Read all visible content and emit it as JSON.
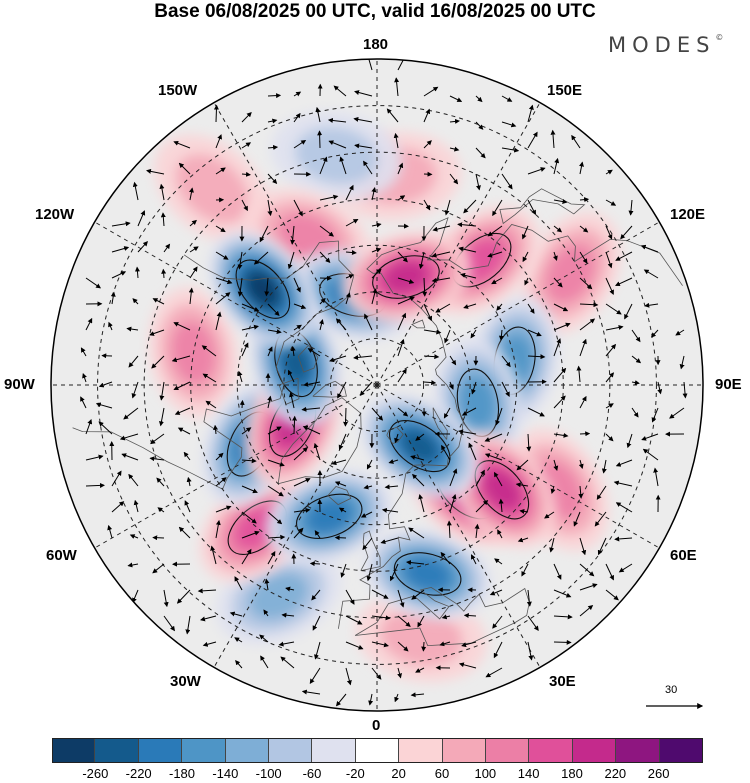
{
  "title": "Base 06/08/2025 00 UTC, valid 16/08/2025 00 UTC",
  "brand": {
    "name": "MODES",
    "mark": "©"
  },
  "longitude_labels": {
    "lon_180": "180",
    "lon_150e": "150E",
    "lon_120e": "120E",
    "lon_90e": "90E",
    "lon_60e": "60E",
    "lon_30e": "30E",
    "lon_0": "0",
    "lon_30w": "30W",
    "lon_60w": "60W",
    "lon_90w": "90W",
    "lon_120w": "120W",
    "lon_150w": "150W"
  },
  "reference_vector": {
    "label": "30",
    "icon": "arrow-right-icon"
  },
  "colorbar": {
    "colors": [
      "#0d3b66",
      "#145a8c",
      "#2a7ab8",
      "#4e95c6",
      "#7eaed6",
      "#b2c6e3",
      "#dfe1ef",
      "#ffffff",
      "#fbd4d6",
      "#f4a9b8",
      "#ec7fa6",
      "#e0509a",
      "#c42a8c",
      "#8e1680",
      "#4f0a6e"
    ],
    "ticks": [
      "-260",
      "-220",
      "-180",
      "-140",
      "-100",
      "-60",
      "-20",
      "20",
      "60",
      "100",
      "140",
      "180",
      "220",
      "260"
    ]
  },
  "anomalies": [
    {
      "lon": 35,
      "lat": 74,
      "value": -220
    },
    {
      "lon": -130,
      "lat": 58,
      "value": -260
    },
    {
      "lon": -105,
      "lat": 72,
      "value": -220
    },
    {
      "lon": -65,
      "lat": 60,
      "value": -200
    },
    {
      "lon": -165,
      "lat": 70,
      "value": -180
    },
    {
      "lon": -20,
      "lat": 60,
      "value": -180
    },
    {
      "lon": 15,
      "lat": 48,
      "value": -180
    },
    {
      "lon": 50,
      "lat": 55,
      "value": 200
    },
    {
      "lon": 140,
      "lat": 55,
      "value": 160
    },
    {
      "lon": 165,
      "lat": 66,
      "value": 180
    },
    {
      "lon": -65,
      "lat": 70,
      "value": 200
    },
    {
      "lon": 40,
      "lat": 60,
      "value": 180
    },
    {
      "lon": -155,
      "lat": 55,
      "value": 120
    },
    {
      "lon": -40,
      "lat": 50,
      "value": 140
    },
    {
      "lon": 100,
      "lat": 60,
      "value": -140
    },
    {
      "lon": 80,
      "lat": 68,
      "value": -140
    },
    {
      "lon": 120,
      "lat": 42,
      "value": 120
    },
    {
      "lon": 60,
      "lat": 45,
      "value": 100
    },
    {
      "lon": -100,
      "lat": 50,
      "value": 100
    },
    {
      "lon": -25,
      "lat": 40,
      "value": -100
    },
    {
      "lon": 10,
      "lat": 35,
      "value": 80
    },
    {
      "lon": -170,
      "lat": 40,
      "value": -80
    },
    {
      "lon": 175,
      "lat": 45,
      "value": 60
    },
    {
      "lon": -140,
      "lat": 35,
      "value": 80
    }
  ],
  "continent_outlines": [
    [
      [
        -168,
        66
      ],
      [
        -162,
        70
      ],
      [
        -152,
        71
      ],
      [
        -140,
        70
      ],
      [
        -128,
        70
      ],
      [
        -115,
        68
      ],
      [
        -100,
        68
      ],
      [
        -90,
        70
      ],
      [
        -82,
        69
      ],
      [
        -80,
        64
      ],
      [
        -78,
        58
      ],
      [
        -82,
        53
      ],
      [
        -78,
        52
      ],
      [
        -65,
        58
      ],
      [
        -62,
        57
      ],
      [
        -58,
        52
      ],
      [
        -56,
        50
      ],
      [
        -66,
        45
      ],
      [
        -70,
        42
      ],
      [
        -75,
        38
      ],
      [
        -80,
        32
      ],
      [
        -81,
        26
      ],
      [
        -82,
        24
      ]
    ],
    [
      [
        -168,
        66
      ],
      [
        -163,
        62
      ],
      [
        -165,
        58
      ],
      [
        -158,
        57
      ],
      [
        -152,
        59
      ],
      [
        -148,
        60
      ],
      [
        -140,
        60
      ],
      [
        -134,
        57
      ],
      [
        -130,
        55
      ],
      [
        -125,
        50
      ],
      [
        -124,
        45
      ],
      [
        -124,
        40
      ]
    ],
    [
      [
        -45,
        60
      ],
      [
        -52,
        64
      ],
      [
        -55,
        68
      ],
      [
        -60,
        75
      ],
      [
        -68,
        78
      ],
      [
        -70,
        82
      ],
      [
        -50,
        83
      ],
      [
        -30,
        83
      ],
      [
        -20,
        80
      ],
      [
        -18,
        76
      ],
      [
        -22,
        70
      ],
      [
        -30,
        67
      ],
      [
        -38,
        65
      ],
      [
        -45,
        60
      ]
    ],
    [
      [
        -24,
        64
      ],
      [
        -18,
        63
      ],
      [
        -13,
        65
      ],
      [
        -16,
        66.5
      ],
      [
        -22,
        66.5
      ],
      [
        -24,
        64
      ]
    ],
    [
      [
        -9,
        37
      ],
      [
        -9,
        43
      ],
      [
        -2,
        44
      ],
      [
        -2,
        47
      ],
      [
        -5,
        48
      ],
      [
        2,
        51
      ],
      [
        5,
        53
      ],
      [
        8,
        54
      ],
      [
        8,
        57
      ],
      [
        12,
        56
      ],
      [
        11,
        59
      ],
      [
        5,
        59
      ],
      [
        5,
        62
      ],
      [
        13,
        66
      ],
      [
        18,
        70
      ],
      [
        25,
        71
      ],
      [
        31,
        70
      ],
      [
        41,
        67
      ],
      [
        44,
        68
      ],
      [
        53,
        68
      ],
      [
        60,
        69
      ],
      [
        68,
        70
      ],
      [
        73,
        72
      ],
      [
        80,
        73
      ],
      [
        90,
        75
      ],
      [
        100,
        77
      ],
      [
        105,
        77
      ],
      [
        112,
        74
      ],
      [
        125,
        73
      ],
      [
        135,
        72
      ],
      [
        150,
        71
      ],
      [
        160,
        70
      ],
      [
        170,
        70
      ],
      [
        178,
        66
      ],
      [
        -178,
        66
      ],
      [
        -175,
        65
      ],
      [
        178,
        62
      ],
      [
        170,
        60
      ],
      [
        163,
        58
      ],
      [
        160,
        53
      ],
      [
        157,
        51
      ],
      [
        156,
        57
      ],
      [
        158,
        61
      ],
      [
        150,
        59
      ],
      [
        143,
        59
      ],
      [
        137,
        55
      ],
      [
        140,
        50
      ],
      [
        140,
        45
      ],
      [
        135,
        43
      ],
      [
        130,
        42
      ],
      [
        128,
        38
      ],
      [
        125,
        38
      ],
      [
        122,
        40
      ],
      [
        122,
        31
      ],
      [
        120,
        28
      ],
      [
        115,
        23
      ],
      [
        108,
        21
      ]
    ],
    [
      [
        -5,
        36
      ],
      [
        10,
        37
      ],
      [
        11,
        33
      ],
      [
        20,
        31
      ],
      [
        30,
        31
      ],
      [
        33,
        31
      ],
      [
        35,
        33
      ],
      [
        36,
        36
      ],
      [
        30,
        36
      ],
      [
        26,
        37
      ],
      [
        26,
        40
      ],
      [
        23,
        39
      ],
      [
        21,
        38
      ],
      [
        20,
        40
      ],
      [
        15,
        45
      ],
      [
        12,
        45
      ],
      [
        15,
        42
      ],
      [
        18,
        40
      ],
      [
        15,
        38
      ],
      [
        10,
        44
      ],
      [
        3,
        43
      ],
      [
        0,
        39
      ],
      [
        -5,
        36
      ]
    ],
    [
      [
        -5,
        50
      ],
      [
        -3,
        53
      ],
      [
        -5,
        56
      ],
      [
        -5,
        58
      ],
      [
        -3,
        58.6
      ],
      [
        -2,
        57
      ],
      [
        1,
        53
      ],
      [
        1,
        51
      ],
      [
        -5,
        50
      ]
    ],
    [
      [
        141,
        43
      ],
      [
        142,
        46
      ],
      [
        145,
        44
      ],
      [
        141,
        41
      ],
      [
        141,
        38
      ],
      [
        140,
        35
      ],
      [
        133,
        33
      ],
      [
        131,
        31
      ],
      [
        131,
        34
      ],
      [
        135,
        35
      ],
      [
        140,
        38
      ],
      [
        141,
        43
      ]
    ],
    [
      [
        -80,
        76
      ],
      [
        -75,
        80
      ],
      [
        -70,
        83
      ],
      [
        -85,
        83
      ],
      [
        -95,
        81
      ],
      [
        -90,
        79
      ],
      [
        -80,
        76
      ]
    ],
    [
      [
        -120,
        73
      ],
      [
        -115,
        76
      ],
      [
        -105,
        76
      ],
      [
        -100,
        74
      ],
      [
        -110,
        72
      ],
      [
        -120,
        73
      ]
    ],
    [
      [
        -95,
        73
      ],
      [
        -85,
        73
      ],
      [
        -80,
        73
      ],
      [
        -78,
        70
      ],
      [
        -90,
        69
      ],
      [
        -95,
        73
      ]
    ],
    [
      [
        11,
        79
      ],
      [
        15,
        80
      ],
      [
        25,
        80
      ],
      [
        28,
        78
      ],
      [
        20,
        77
      ],
      [
        15,
        77
      ],
      [
        11,
        79
      ]
    ],
    [
      [
        52,
        71
      ],
      [
        55,
        74
      ],
      [
        60,
        76
      ],
      [
        68,
        77
      ],
      [
        62,
        75
      ],
      [
        57,
        72
      ],
      [
        52,
        71
      ]
    ],
    [
      [
        140,
        74
      ],
      [
        145,
        75
      ],
      [
        150,
        75
      ],
      [
        145,
        73
      ],
      [
        140,
        74
      ]
    ]
  ]
}
